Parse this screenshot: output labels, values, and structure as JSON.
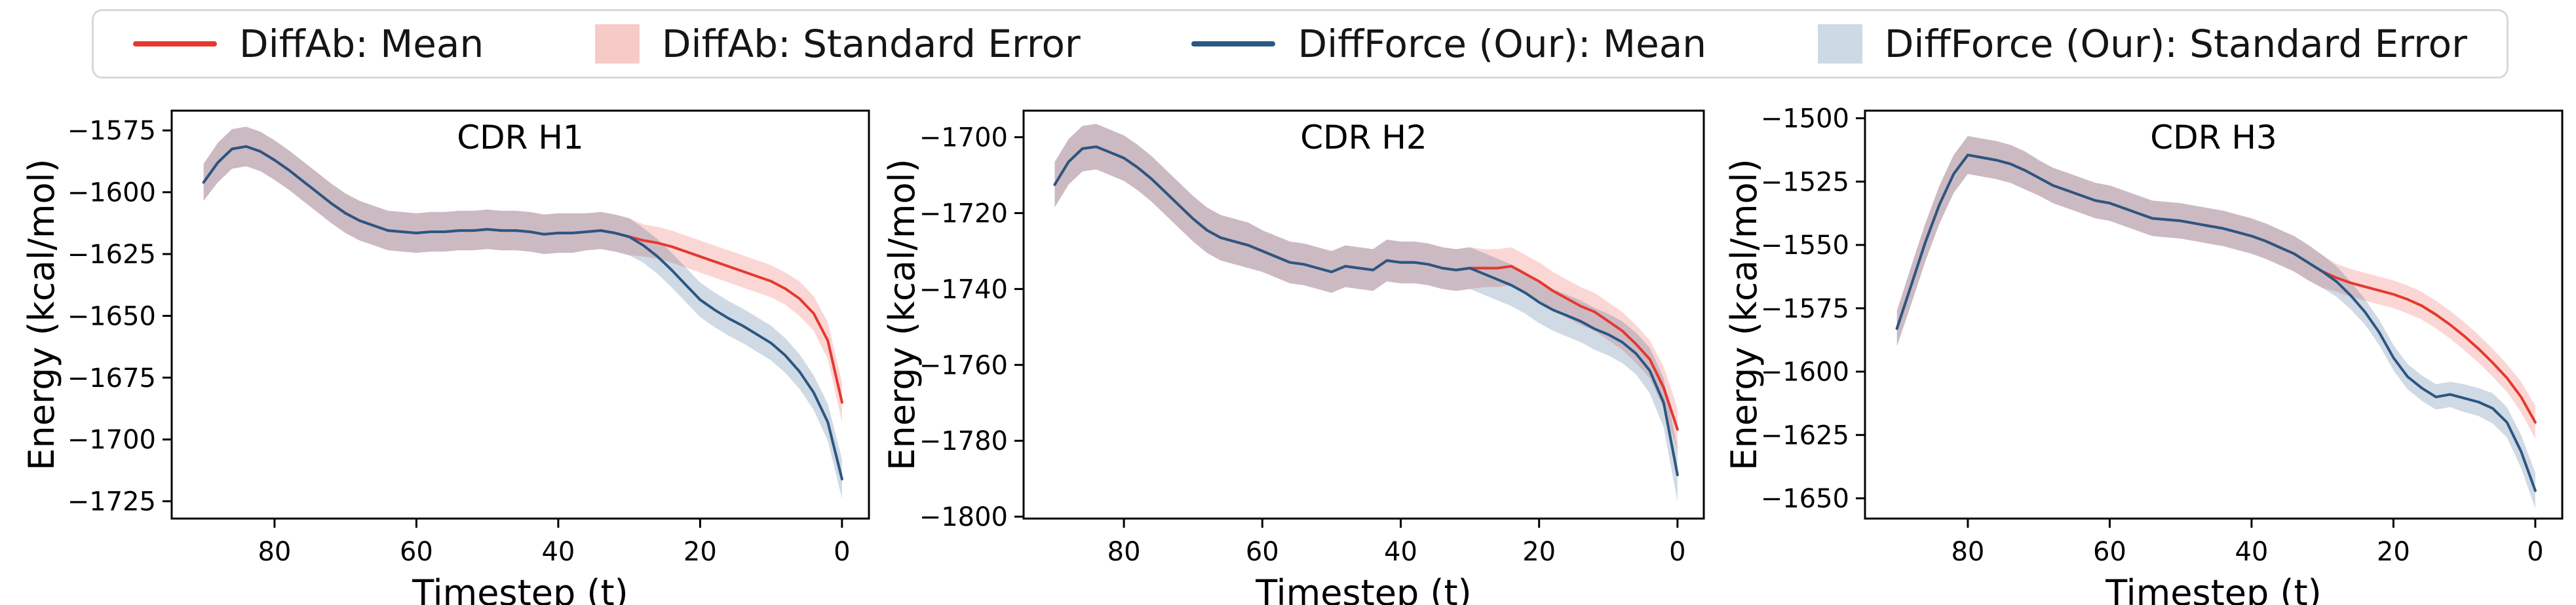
{
  "legend": {
    "border_color": "#d8d8d8",
    "items": [
      {
        "label": "DiffAb: Mean",
        "swatch": "line",
        "color": "#e4392f"
      },
      {
        "label": "DiffAb: Standard Error",
        "swatch": "patch",
        "color": "#f6cbc7"
      },
      {
        "label": "DiffForce (Our): Mean",
        "swatch": "line",
        "color": "#2a5783"
      },
      {
        "label": "DiffForce (Our): Standard Error",
        "swatch": "patch",
        "color": "#cdd9e4"
      }
    ]
  },
  "chart_data": [
    {
      "type": "line",
      "title": "CDR H1",
      "xlabel": "Timestep (t)",
      "ylabel": "Energy (kcal/mol)",
      "x_axis_inverted": true,
      "xlim": [
        94.5,
        -3.8
      ],
      "ylim": [
        -1732,
        -1567
      ],
      "x_ticks": [
        80,
        60,
        40,
        20,
        0
      ],
      "y_ticks": [
        -1575,
        -1600,
        -1625,
        -1650,
        -1675,
        -1700,
        -1725
      ],
      "grid": false,
      "x": [
        90,
        88,
        86,
        84,
        82,
        80,
        78,
        76,
        74,
        72,
        70,
        68,
        66,
        64,
        62,
        60,
        58,
        56,
        54,
        52,
        50,
        48,
        46,
        44,
        42,
        40,
        38,
        36,
        34,
        32,
        30,
        28,
        26,
        24,
        22,
        20,
        18,
        16,
        14,
        12,
        10,
        8,
        6,
        4,
        2,
        0
      ],
      "series": [
        {
          "name": "DiffAb: Mean",
          "color": "#e4392f",
          "band_name": "DiffAb: Standard Error",
          "band_opacity": 0.2,
          "values": [
            -1596,
            -1588,
            -1582.5,
            -1581.5,
            -1583.5,
            -1587,
            -1591,
            -1595.5,
            -1600,
            -1604.5,
            -1608.5,
            -1611.5,
            -1613.5,
            -1615.5,
            -1616,
            -1616.5,
            -1616,
            -1616,
            -1615.5,
            -1615.5,
            -1615,
            -1615.5,
            -1615.5,
            -1616,
            -1617,
            -1616.5,
            -1616.5,
            -1616,
            -1615.5,
            -1616.5,
            -1618,
            -1619.5,
            -1620.5,
            -1622,
            -1624,
            -1626,
            -1628,
            -1630,
            -1632,
            -1634,
            -1636,
            -1639,
            -1643,
            -1649,
            -1660,
            -1685
          ],
          "se": [
            7.5,
            8,
            8,
            8,
            8,
            8,
            8,
            8,
            8,
            8,
            8,
            8,
            8,
            8,
            8,
            8,
            8,
            8,
            8,
            8,
            8,
            8,
            8,
            8,
            8,
            8,
            8,
            7.5,
            7.5,
            7.5,
            7.5,
            6.5,
            6.5,
            6.5,
            6.5,
            6.5,
            6.5,
            6.5,
            6.5,
            6.5,
            6.5,
            6.5,
            7,
            7,
            7.5,
            8
          ]
        },
        {
          "name": "DiffForce (Our): Mean",
          "color": "#2a5783",
          "band_name": "DiffForce (Our): Standard Error",
          "band_opacity": 0.22,
          "values": [
            -1596,
            -1588,
            -1582.5,
            -1581.5,
            -1583.5,
            -1587,
            -1591,
            -1595.5,
            -1600,
            -1604.5,
            -1608.5,
            -1611.5,
            -1613.5,
            -1615.5,
            -1616,
            -1616.5,
            -1616,
            -1616,
            -1615.5,
            -1615.5,
            -1615,
            -1615.5,
            -1615.5,
            -1616,
            -1617,
            -1616.5,
            -1616.5,
            -1616,
            -1615.5,
            -1616.5,
            -1618,
            -1621.5,
            -1626,
            -1631.5,
            -1637.5,
            -1643.5,
            -1647.5,
            -1651,
            -1654,
            -1657.5,
            -1661,
            -1666,
            -1672.5,
            -1681,
            -1693,
            -1716
          ],
          "se": [
            7.5,
            8,
            8,
            8,
            8,
            8,
            8,
            8,
            8,
            8,
            8,
            8,
            8,
            8,
            8,
            8,
            8,
            8,
            8,
            8,
            8,
            8,
            8,
            8,
            8,
            8,
            8,
            7.5,
            7.5,
            7.5,
            7.5,
            7,
            7,
            7,
            7,
            7,
            7,
            7,
            7,
            7,
            7,
            7,
            7,
            7,
            7.5,
            8
          ]
        }
      ]
    },
    {
      "type": "line",
      "title": "CDR H2",
      "xlabel": "Timestep (t)",
      "ylabel": "Energy (kcal/mol)",
      "x_axis_inverted": true,
      "xlim": [
        94.5,
        -3.8
      ],
      "ylim": [
        -1800.5,
        -1693
      ],
      "x_ticks": [
        80,
        60,
        40,
        20,
        0
      ],
      "y_ticks": [
        -1700,
        -1720,
        -1740,
        -1760,
        -1780,
        -1800
      ],
      "grid": false,
      "x": [
        90,
        88,
        86,
        84,
        82,
        80,
        78,
        76,
        74,
        72,
        70,
        68,
        66,
        64,
        62,
        60,
        58,
        56,
        54,
        52,
        50,
        48,
        46,
        44,
        42,
        40,
        38,
        36,
        34,
        32,
        30,
        28,
        26,
        24,
        22,
        20,
        18,
        16,
        14,
        12,
        10,
        8,
        6,
        4,
        2,
        0
      ],
      "series": [
        {
          "name": "DiffAb: Mean",
          "color": "#e4392f",
          "band_name": "DiffAb: Standard Error",
          "band_opacity": 0.2,
          "values": [
            -1712.5,
            -1706.5,
            -1703,
            -1702.5,
            -1704,
            -1705.5,
            -1708,
            -1711,
            -1714.5,
            -1718,
            -1721.5,
            -1724.5,
            -1726.5,
            -1727.5,
            -1728.5,
            -1730,
            -1731.5,
            -1733,
            -1733.5,
            -1734.5,
            -1735.5,
            -1734,
            -1734.5,
            -1735,
            -1732.5,
            -1733,
            -1733,
            -1733.5,
            -1734.5,
            -1735,
            -1734.5,
            -1734.5,
            -1734.5,
            -1734,
            -1736,
            -1738,
            -1740.5,
            -1742.5,
            -1744.5,
            -1746,
            -1748.5,
            -1751,
            -1754.5,
            -1758.5,
            -1766,
            -1777
          ],
          "se": [
            6,
            6,
            6,
            6,
            6,
            6,
            6,
            6,
            6,
            6,
            6,
            6,
            6,
            6,
            6,
            5.5,
            5.5,
            5.5,
            5.5,
            5.5,
            5.5,
            5.5,
            5.5,
            5.5,
            5.5,
            5.5,
            5.5,
            5.5,
            5.5,
            5.5,
            5.5,
            5,
            5,
            5,
            5,
            5,
            5,
            5,
            5,
            5,
            5,
            5,
            5,
            5,
            5.5,
            5.5
          ],
          "note": ""
        },
        {
          "name": "DiffForce (Our): Mean",
          "color": "#2a5783",
          "band_name": "DiffForce (Our): Standard Error",
          "band_opacity": 0.22,
          "values": [
            -1712.5,
            -1706.5,
            -1703,
            -1702.5,
            -1704,
            -1705.5,
            -1708,
            -1711,
            -1714.5,
            -1718,
            -1721.5,
            -1724.5,
            -1726.5,
            -1727.5,
            -1728.5,
            -1730,
            -1731.5,
            -1733,
            -1733.5,
            -1734.5,
            -1735.5,
            -1734,
            -1734.5,
            -1735,
            -1732.5,
            -1733,
            -1733,
            -1733.5,
            -1734.5,
            -1735,
            -1734.5,
            -1736,
            -1737.5,
            -1739,
            -1741,
            -1743.5,
            -1745.5,
            -1747,
            -1748.5,
            -1750.5,
            -1752,
            -1754,
            -1757,
            -1761.5,
            -1770,
            -1789
          ],
          "se": [
            6,
            6,
            6,
            6,
            6,
            6,
            6,
            6,
            6,
            6,
            6,
            6,
            6,
            6,
            6,
            5.5,
            5.5,
            5.5,
            5.5,
            5.5,
            5.5,
            5.5,
            5.5,
            5.5,
            5.5,
            5.5,
            5.5,
            5.5,
            5.5,
            5.5,
            5.5,
            5.5,
            5.5,
            5.5,
            5.5,
            5.5,
            5.5,
            5.5,
            5.5,
            5.5,
            5.5,
            5.5,
            5.5,
            6,
            6.5,
            7
          ]
        }
      ]
    },
    {
      "type": "line",
      "title": "CDR H3",
      "xlabel": "Timestep (t)",
      "ylabel": "Energy (kcal/mol)",
      "x_axis_inverted": true,
      "xlim": [
        94.5,
        -3.8
      ],
      "ylim": [
        -1658,
        -1497
      ],
      "x_ticks": [
        80,
        60,
        40,
        20,
        0
      ],
      "y_ticks": [
        -1500,
        -1525,
        -1550,
        -1575,
        -1600,
        -1625,
        -1650
      ],
      "grid": false,
      "x": [
        90,
        88,
        86,
        84,
        82,
        80,
        78,
        76,
        74,
        72,
        70,
        68,
        66,
        64,
        62,
        60,
        58,
        56,
        54,
        52,
        50,
        48,
        46,
        44,
        42,
        40,
        38,
        36,
        34,
        32,
        30,
        28,
        26,
        24,
        22,
        20,
        18,
        16,
        14,
        12,
        10,
        8,
        6,
        4,
        2,
        0
      ],
      "series": [
        {
          "name": "DiffAb: Mean",
          "color": "#e4392f",
          "band_name": "DiffAb: Standard Error",
          "band_opacity": 0.2,
          "values": [
            -1583,
            -1566,
            -1549,
            -1534,
            -1522,
            -1514.5,
            -1515.5,
            -1516.5,
            -1518,
            -1520.5,
            -1523.5,
            -1526.5,
            -1528.5,
            -1530.5,
            -1532.5,
            -1533.5,
            -1535.5,
            -1537.5,
            -1539.5,
            -1540,
            -1540.5,
            -1541.5,
            -1542.5,
            -1543.5,
            -1545,
            -1546.5,
            -1548.5,
            -1551,
            -1553.5,
            -1557,
            -1560.5,
            -1563,
            -1565,
            -1566.5,
            -1568,
            -1569.5,
            -1571.5,
            -1574,
            -1577.5,
            -1581.5,
            -1586,
            -1591,
            -1596.5,
            -1602.5,
            -1610,
            -1620
          ],
          "se": [
            7,
            7.5,
            7.5,
            7.5,
            7.5,
            7.5,
            7.5,
            7.5,
            7.5,
            7.5,
            7,
            7,
            7,
            7,
            7,
            7,
            7,
            7,
            7,
            7,
            7,
            7,
            7,
            7,
            7,
            7,
            7,
            7,
            7,
            7,
            6.5,
            5.5,
            5.5,
            5.5,
            5.5,
            5.5,
            5.5,
            5.5,
            5.5,
            5.5,
            5.5,
            5.5,
            5.5,
            5.5,
            6,
            6.5
          ]
        },
        {
          "name": "DiffForce (Our): Mean",
          "color": "#2a5783",
          "band_name": "DiffForce (Our): Standard Error",
          "band_opacity": 0.22,
          "values": [
            -1583,
            -1566,
            -1549,
            -1534,
            -1522,
            -1514.5,
            -1515.5,
            -1516.5,
            -1518,
            -1520.5,
            -1523.5,
            -1526.5,
            -1528.5,
            -1530.5,
            -1532.5,
            -1533.5,
            -1535.5,
            -1537.5,
            -1539.5,
            -1540,
            -1540.5,
            -1541.5,
            -1542.5,
            -1543.5,
            -1545,
            -1546.5,
            -1548.5,
            -1551,
            -1553.5,
            -1557,
            -1560.5,
            -1564.5,
            -1570,
            -1576.5,
            -1584.5,
            -1594.5,
            -1602,
            -1606.5,
            -1610,
            -1609,
            -1610.5,
            -1612,
            -1614.5,
            -1620,
            -1631.5,
            -1647
          ],
          "se": [
            7,
            7.5,
            7.5,
            7.5,
            7.5,
            7.5,
            7.5,
            7.5,
            7.5,
            7.5,
            7,
            7,
            7,
            7,
            7,
            7,
            7,
            7,
            7,
            7,
            7,
            7,
            7,
            7,
            7,
            7,
            7,
            7,
            7,
            7,
            6.5,
            6,
            5.5,
            5,
            5,
            5,
            5,
            5,
            5,
            5,
            5.5,
            5.5,
            6,
            6,
            6.5,
            7
          ]
        }
      ]
    }
  ]
}
